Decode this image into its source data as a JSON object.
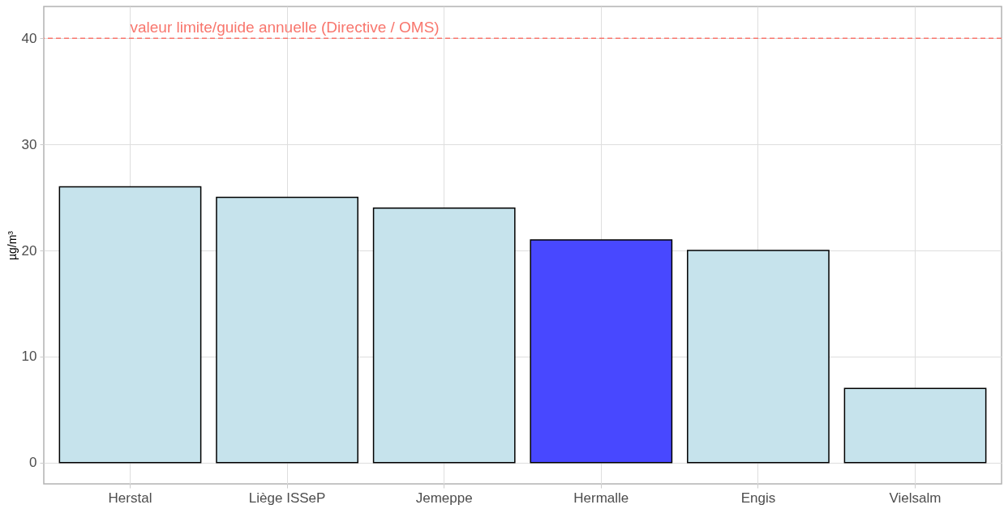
{
  "chart_data": {
    "type": "bar",
    "ylabel": "µg/m³",
    "categories": [
      "Herstal",
      "Liège ISSeP",
      "Jemeppe",
      "Hermalle",
      "Engis",
      "Vielsalm"
    ],
    "values": [
      26,
      25,
      24,
      21,
      20,
      7
    ],
    "colors": [
      "#c6e3ec",
      "#c6e3ec",
      "#c6e3ec",
      "#4848ff",
      "#c6e3ec",
      "#c6e3ec"
    ],
    "ylim": [
      -2,
      43
    ],
    "yticks": [
      0,
      10,
      20,
      30,
      40
    ],
    "grid": true,
    "ref_lines": [
      {
        "axis": "y",
        "value": 40,
        "label": "valeur limite/guide annuelle (Directive / OMS)",
        "color": "#f8766d",
        "line_style": "dashed"
      }
    ]
  }
}
